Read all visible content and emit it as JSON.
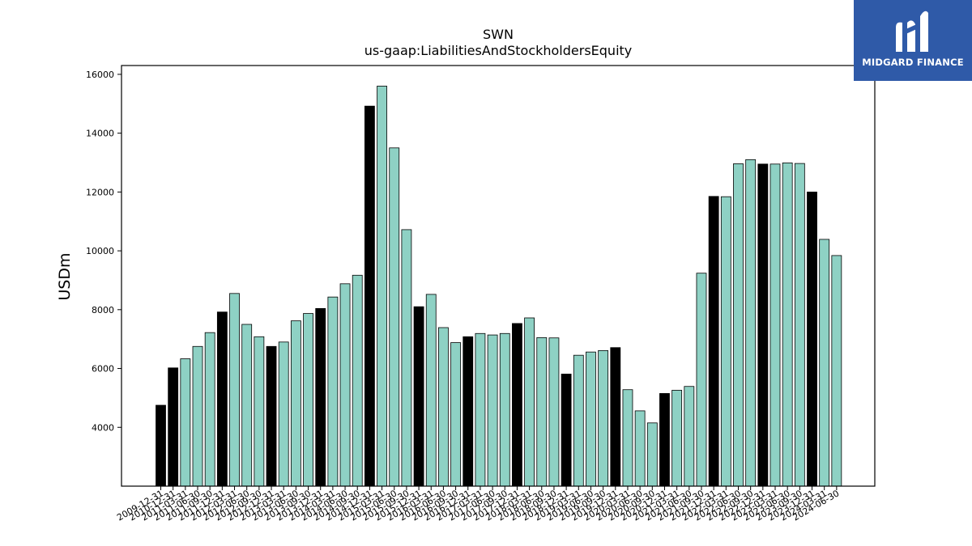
{
  "logo": {
    "text": "MIDGARD FINANCE",
    "icon": "midgard-logo-icon",
    "bg_color": "#2f5aa8"
  },
  "chart_data": {
    "type": "bar",
    "title": "SWN",
    "subtitle": "us-gaap:LiabilitiesAndStockholdersEquity",
    "ylabel": "USDm",
    "xlabel": "",
    "ylim": [
      2000,
      16300
    ],
    "yticks": [
      4000,
      6000,
      8000,
      10000,
      12000,
      14000,
      16000
    ],
    "colors": {
      "annual": "#000000",
      "quarter": "#8ed1c4"
    },
    "categories": [
      "2009-12-31",
      "2010-12-31",
      "2011-03-31",
      "2011-06-30",
      "2011-09-30",
      "2011-12-31",
      "2012-03-31",
      "2012-06-30",
      "2012-09-30",
      "2012-12-31",
      "2013-03-31",
      "2013-06-30",
      "2013-09-30",
      "2013-12-31",
      "2014-03-31",
      "2014-06-30",
      "2014-09-30",
      "2014-12-31",
      "2015-03-31",
      "2015-06-30",
      "2015-09-30",
      "2015-12-31",
      "2016-03-31",
      "2016-06-30",
      "2016-09-30",
      "2016-12-31",
      "2017-03-31",
      "2017-06-30",
      "2017-09-30",
      "2017-12-31",
      "2018-03-31",
      "2018-06-30",
      "2018-09-30",
      "2018-12-31",
      "2019-03-31",
      "2019-06-30",
      "2019-09-30",
      "2019-12-31",
      "2020-03-31",
      "2020-06-30",
      "2020-09-30",
      "2020-12-31",
      "2021-03-31",
      "2021-06-30",
      "2021-09-30",
      "2021-12-31",
      "2022-03-31",
      "2022-06-30",
      "2022-09-30",
      "2022-12-31",
      "2023-03-31",
      "2023-06-30",
      "2023-09-30",
      "2023-12-31",
      "2024-03-31",
      "2024-06-30"
    ],
    "values": [
      4750,
      6020,
      6330,
      6750,
      7220,
      7920,
      8550,
      7500,
      7080,
      6750,
      6900,
      7620,
      7870,
      8040,
      8430,
      8880,
      9170,
      14920,
      15600,
      13500,
      10720,
      8100,
      8520,
      7390,
      6880,
      7080,
      7190,
      7140,
      7190,
      7530,
      7720,
      7050,
      7040,
      5810,
      6450,
      6560,
      6610,
      6710,
      5280,
      4560,
      4150,
      5150,
      5260,
      5390,
      9240,
      11850,
      11840,
      12960,
      13100,
      12950,
      12950,
      12990,
      12970,
      12000,
      10390,
      9840
    ],
    "annual_flags": [
      1,
      1,
      0,
      0,
      0,
      1,
      0,
      0,
      0,
      1,
      0,
      0,
      0,
      1,
      0,
      0,
      0,
      1,
      0,
      0,
      0,
      1,
      0,
      0,
      0,
      1,
      0,
      0,
      0,
      1,
      0,
      0,
      0,
      1,
      0,
      0,
      0,
      1,
      0,
      0,
      0,
      1,
      0,
      0,
      0,
      1,
      0,
      0,
      0,
      1,
      0,
      0,
      0,
      1,
      0,
      0
    ],
    "grid": false,
    "legend": "none"
  }
}
